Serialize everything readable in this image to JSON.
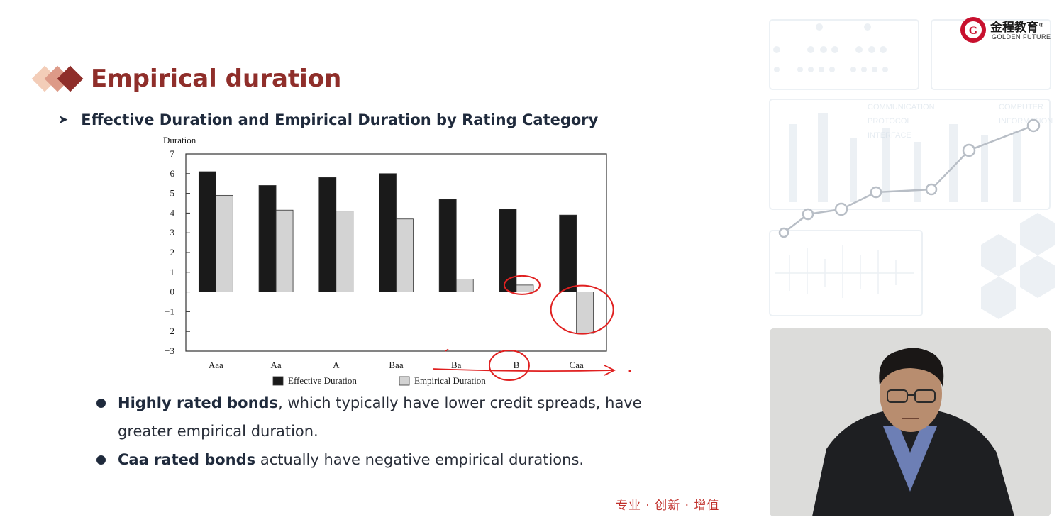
{
  "slide": {
    "title": "Empirical duration",
    "subtitle": "Effective Duration and Empirical Duration by Rating Category",
    "subtitle_marker": "➤",
    "bullets": [
      {
        "bold": "Highly rated bonds",
        "rest_line1": ", which typically have lower credit spreads, have",
        "rest_line2": "greater empirical duration."
      },
      {
        "bold": "Caa rated bonds",
        "rest_line1": " actually have negative empirical durations."
      }
    ],
    "slogan": "专业 · 创新 · 增值"
  },
  "logo": {
    "cn": "金程教育",
    "en": "GOLDEN FUTURE",
    "registered": "®",
    "seal_letter": "G"
  },
  "background_deco": {
    "labels": [
      "COMMUNICATION",
      "PROTOCOL",
      "INTERFACE",
      "COMPUTER",
      "INFORMATION"
    ]
  },
  "chart_data": {
    "type": "bar",
    "ylabel": "Duration",
    "ylim": [
      -3,
      7
    ],
    "yticks": [
      "−3",
      "−2",
      "−1",
      "0",
      "1",
      "2",
      "3",
      "4",
      "5",
      "6",
      "7"
    ],
    "categories": [
      "Aaa",
      "Aa",
      "A",
      "Baa",
      "Ba",
      "B",
      "Caa"
    ],
    "series": [
      {
        "name": "Effective Duration",
        "color": "#1a1a1a",
        "values": [
          6.1,
          5.4,
          5.8,
          6.0,
          4.7,
          4.2,
          3.9
        ]
      },
      {
        "name": "Empirical Duration",
        "color": "#d3d3d3",
        "values": [
          4.9,
          4.15,
          4.1,
          3.7,
          0.65,
          0.35,
          -2.1
        ]
      }
    ],
    "annotation_color": "#e02020"
  },
  "colors": {
    "title": "#8f2e2a",
    "text": "#1f2a3c",
    "slogan": "#c0302b",
    "accent_logo": "#c8102e"
  }
}
